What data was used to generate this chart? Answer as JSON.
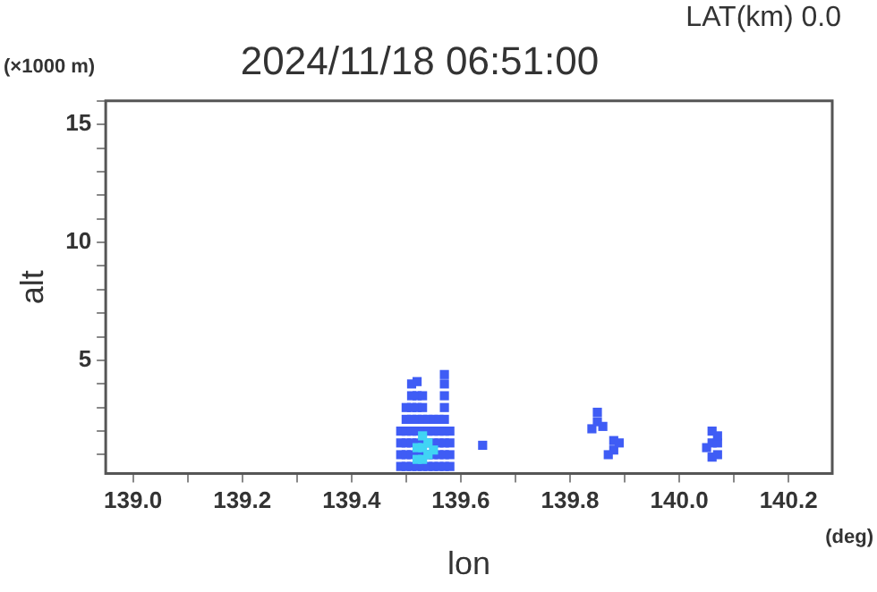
{
  "chart_data": {
    "type": "scatter",
    "title": "2024/11/18 06:51:00",
    "xlabel": "lon",
    "ylabel": "alt",
    "annotations": [
      "LAT(km) 0.0",
      "(×1000 m)",
      "(deg)"
    ],
    "xlim": [
      138.95,
      140.28
    ],
    "xticks": [
      {
        "value": 139.0,
        "label": "139.0"
      },
      {
        "value": 139.1,
        "label": null
      },
      {
        "value": 139.2,
        "label": "139.2"
      },
      {
        "value": 139.3,
        "label": null
      },
      {
        "value": 139.4,
        "label": "139.4"
      },
      {
        "value": 139.5,
        "label": null
      },
      {
        "value": 139.6,
        "label": "139.6"
      },
      {
        "value": 139.7,
        "label": null
      },
      {
        "value": 139.8,
        "label": "139.8"
      },
      {
        "value": 139.9,
        "label": null
      },
      {
        "value": 140.0,
        "label": "140.0"
      },
      {
        "value": 140.1,
        "label": null
      },
      {
        "value": 140.2,
        "label": "140.2"
      }
    ],
    "ylim": [
      0.2,
      16
    ],
    "yticks": [
      {
        "value": 1,
        "label": null
      },
      {
        "value": 2,
        "label": null
      },
      {
        "value": 3,
        "label": null
      },
      {
        "value": 4,
        "label": null
      },
      5,
      {
        "value": 6,
        "label": null
      },
      {
        "value": 7,
        "label": null
      },
      {
        "value": 8,
        "label": null
      },
      {
        "value": 9,
        "label": null
      },
      10,
      {
        "value": 11,
        "label": null
      },
      {
        "value": 12,
        "label": null
      },
      {
        "value": 13,
        "label": null
      },
      {
        "value": 14,
        "label": null
      },
      15,
      {
        "value": 16,
        "label": null
      }
    ],
    "marker": "square",
    "grid": false,
    "legend": false,
    "series": [
      {
        "color": "#3f5cf5",
        "x": [
          139.49,
          139.49,
          139.49,
          139.49,
          139.5,
          139.5,
          139.5,
          139.5,
          139.5,
          139.5,
          139.51,
          139.51,
          139.51,
          139.51,
          139.51,
          139.51,
          139.51,
          139.51,
          139.52,
          139.52,
          139.52,
          139.52,
          139.52,
          139.52,
          139.52,
          139.52,
          139.53,
          139.53,
          139.53,
          139.53,
          139.53,
          139.53,
          139.53,
          139.54,
          139.54,
          139.54,
          139.54,
          139.54,
          139.55,
          139.55,
          139.55,
          139.55,
          139.55,
          139.56,
          139.56,
          139.56,
          139.56,
          139.56,
          139.57,
          139.57,
          139.57,
          139.57,
          139.57,
          139.57,
          139.57,
          139.57,
          139.57,
          139.58,
          139.58,
          139.58,
          139.58,
          139.64,
          139.84,
          139.85,
          139.85,
          139.86,
          139.87,
          139.88,
          139.88,
          139.89,
          140.05,
          140.06,
          140.06,
          140.06,
          140.07,
          140.07,
          140.07
        ],
        "values": [
          0.5,
          1.0,
          1.5,
          2.0,
          0.5,
          1.0,
          1.5,
          2.0,
          2.5,
          3.0,
          0.5,
          1.0,
          1.5,
          2.0,
          2.5,
          3.0,
          3.5,
          4.0,
          0.5,
          1.0,
          1.5,
          2.0,
          2.5,
          3.0,
          3.5,
          4.1,
          0.5,
          1.0,
          1.5,
          2.0,
          2.5,
          3.0,
          3.5,
          0.5,
          1.0,
          1.5,
          2.0,
          2.5,
          0.5,
          1.0,
          1.5,
          2.0,
          2.5,
          0.5,
          1.0,
          1.5,
          2.0,
          2.5,
          0.5,
          1.0,
          1.5,
          2.0,
          2.5,
          3.0,
          3.5,
          4.0,
          4.4,
          0.5,
          1.0,
          1.5,
          2.0,
          1.4,
          2.1,
          2.4,
          2.8,
          2.2,
          1.0,
          1.2,
          1.6,
          1.5,
          1.3,
          0.9,
          1.5,
          2.0,
          1.0,
          1.5,
          1.8
        ]
      },
      {
        "color": "#40d4f4",
        "x": [
          139.52,
          139.52,
          139.53,
          139.53,
          139.53,
          139.54,
          139.54,
          139.55
        ],
        "values": [
          0.8,
          1.3,
          0.8,
          1.3,
          1.8,
          1.0,
          1.5,
          1.2
        ]
      }
    ]
  }
}
